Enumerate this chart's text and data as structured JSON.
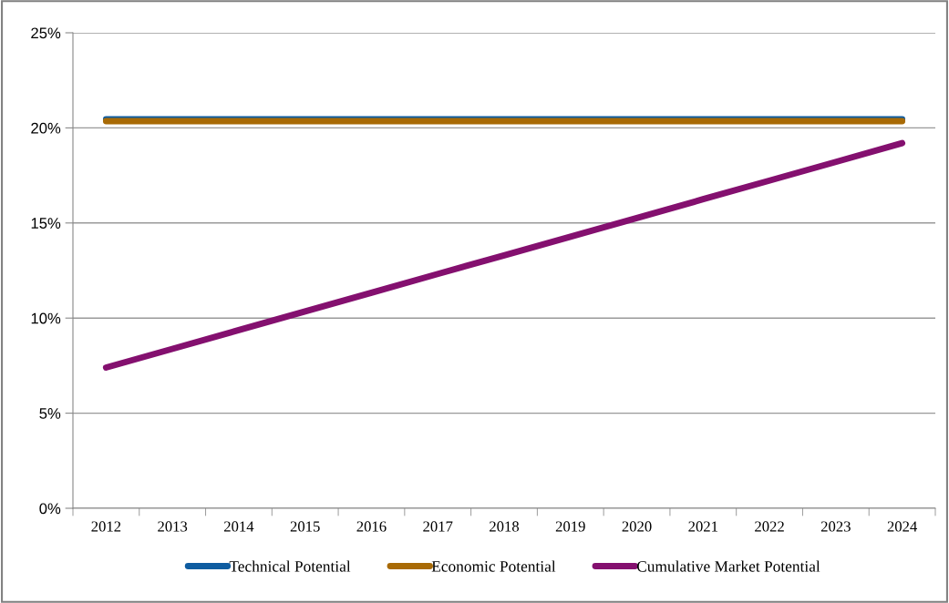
{
  "chart_data": {
    "type": "line",
    "categories": [
      "2012",
      "2013",
      "2014",
      "2015",
      "2016",
      "2017",
      "2018",
      "2019",
      "2020",
      "2021",
      "2022",
      "2023",
      "2024"
    ],
    "series": [
      {
        "name": "Technical Potential",
        "color": "#0f5ca0",
        "values": [
          20.45,
          20.45,
          20.45,
          20.45,
          20.45,
          20.45,
          20.45,
          20.45,
          20.45,
          20.45,
          20.45,
          20.45,
          20.45
        ]
      },
      {
        "name": "Economic Potential",
        "color": "#a86a05",
        "values": [
          20.35,
          20.35,
          20.35,
          20.35,
          20.35,
          20.35,
          20.35,
          20.35,
          20.35,
          20.35,
          20.35,
          20.35,
          20.35
        ]
      },
      {
        "name": "Cumulative Market Potential",
        "color": "#84106f",
        "values": [
          7.4,
          8.38,
          9.37,
          10.35,
          11.33,
          12.32,
          13.3,
          14.28,
          15.26,
          16.25,
          17.23,
          18.21,
          19.2
        ]
      }
    ],
    "ylim": [
      0,
      25
    ],
    "yticks": [
      {
        "value": 0,
        "label": "0%"
      },
      {
        "value": 5,
        "label": "5%"
      },
      {
        "value": 10,
        "label": "10%"
      },
      {
        "value": 15,
        "label": "15%"
      },
      {
        "value": 20,
        "label": "20%"
      },
      {
        "value": 25,
        "label": "25%"
      }
    ],
    "grid": "y",
    "legend": "bottom",
    "marker": "none",
    "line_style": "solid"
  }
}
